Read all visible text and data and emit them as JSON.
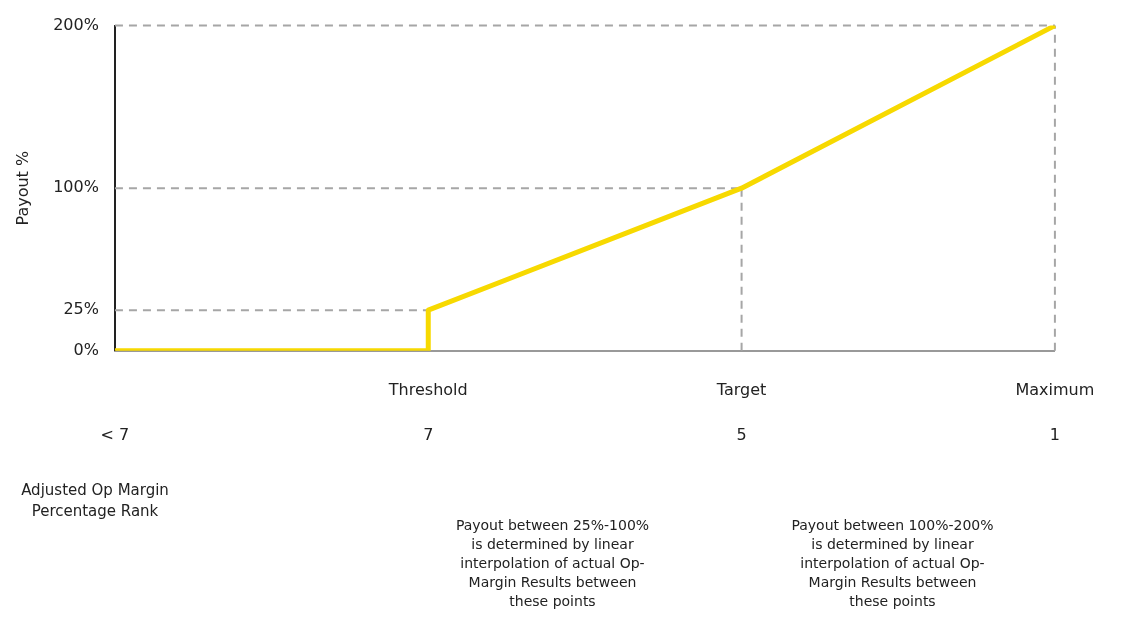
{
  "chart_data": {
    "type": "line",
    "ylabel": "Payout %",
    "xlabel": "Adjusted Op Margin Percentage Rank",
    "categories": [
      "< 7",
      "7",
      "5",
      "1"
    ],
    "series": [
      {
        "color": "#f7d900",
        "x": [
          "< 7",
          "7",
          "7",
          "5",
          "1"
        ],
        "values": [
          0,
          0,
          25,
          100,
          200
        ]
      }
    ],
    "ylim": [
      0,
      200
    ],
    "yticks": [
      {
        "value": 0,
        "label": "0%"
      },
      {
        "value": 25,
        "label": "25%"
      },
      {
        "value": 100,
        "label": "100%"
      },
      {
        "value": 200,
        "label": "200%"
      }
    ],
    "ref_lines": [
      {
        "axis": "x",
        "value": "5",
        "label": "Target",
        "line_style": "dashed",
        "color": "#a6a6a6"
      },
      {
        "axis": "x",
        "value": "1",
        "label": "Maximum",
        "line_style": "dashed",
        "color": "#a6a6a6"
      },
      {
        "axis": "y",
        "value": 25,
        "line_style": "dashed",
        "color": "#a6a6a6"
      },
      {
        "axis": "y",
        "value": 100,
        "line_style": "dashed",
        "color": "#a6a6a6"
      },
      {
        "axis": "y",
        "value": 200,
        "line_style": "dashed",
        "color": "#a6a6a6"
      }
    ],
    "annotations": [
      {
        "text": "Threshold",
        "x": "7",
        "y": 0
      },
      "Payout between 25%-100% is determined by linear interpolation of actual Op-Margin Results between these points",
      "Payout between 100%-200% is determined by linear interpolation of actual Op-Margin Results between these points"
    ],
    "grid": false,
    "legend": false,
    "marker": "none",
    "line_style": "solid"
  }
}
